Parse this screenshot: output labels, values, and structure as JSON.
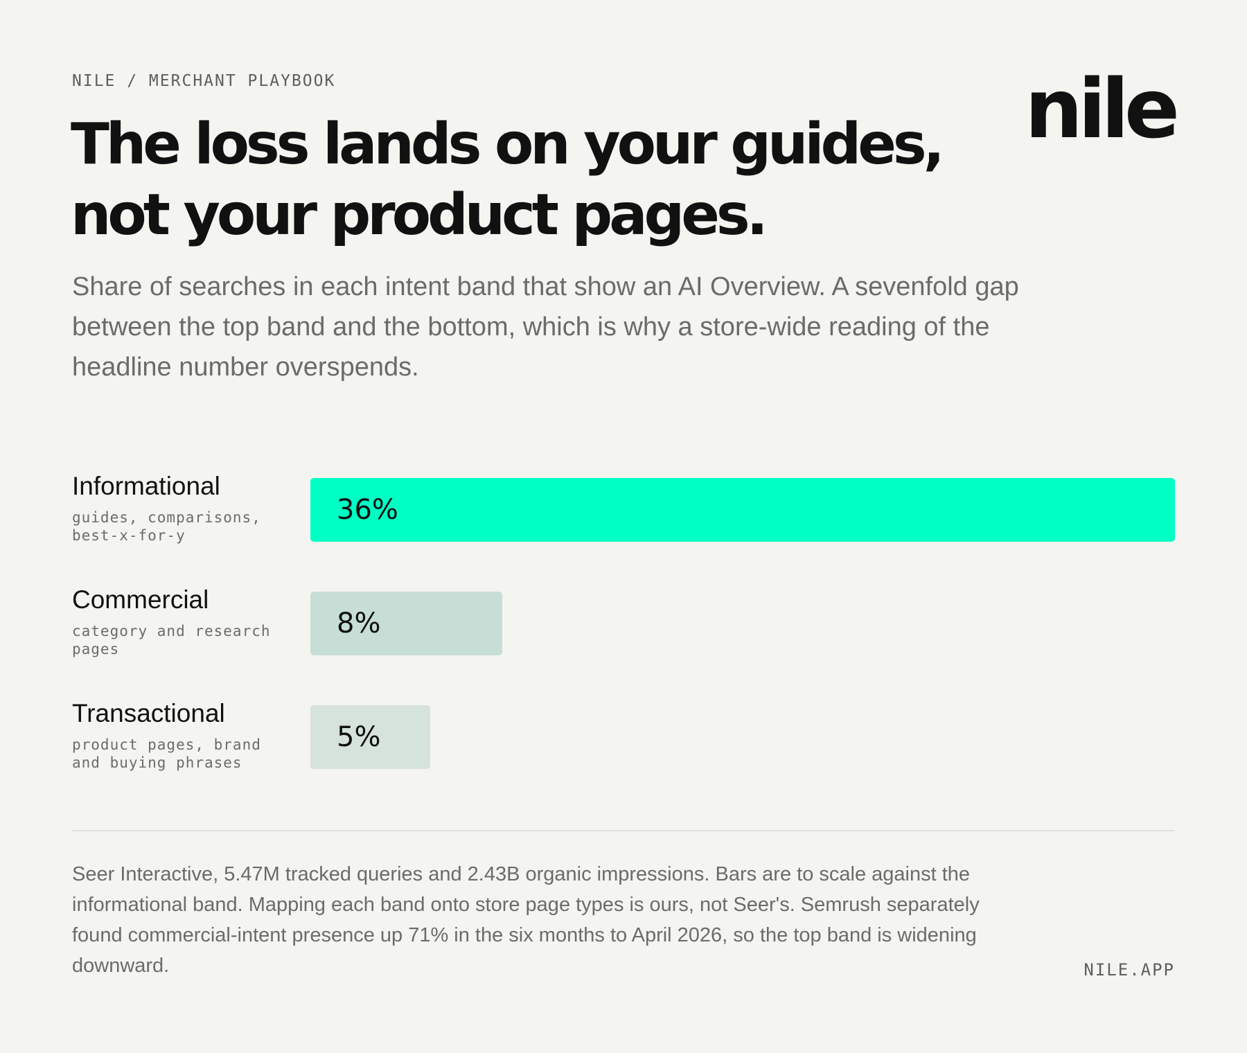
{
  "header": {
    "eyebrow": "NILE / MERCHANT PLAYBOOK",
    "logo_text": "nile",
    "headline_line1": "The loss lands on your guides,",
    "headline_line2": "not your product pages.",
    "subtitle": "Share of searches in each intent band that show an AI Overview. A sevenfold gap between the top band and the bottom, which is why a store-wide reading of the headline number overspends."
  },
  "chart_data": {
    "type": "bar",
    "orientation": "horizontal",
    "title": "",
    "xlabel": "",
    "ylabel": "",
    "xlim": [
      0,
      36
    ],
    "grid": false,
    "categories": [
      "Informational",
      "Commercial",
      "Transactional"
    ],
    "category_descriptions": [
      "guides, comparisons, best-x-for-y",
      "category and research pages",
      "product pages, brand and buying phrases"
    ],
    "values": [
      36,
      8,
      5
    ],
    "value_labels": [
      "36%",
      "8%",
      "5%"
    ],
    "colors": [
      "#00ffc4",
      "#c6ded6",
      "#d6e3dc"
    ]
  },
  "footer": {
    "note": "Seer Interactive, 5.47M tracked queries and 2.43B organic impressions. Bars are to scale against the informational band. Mapping each band onto store page types is ours, not Seer's. Semrush separately found commercial-intent presence up 71% in the six months to April 2026, so the top band is widening downward.",
    "site": "NILE.APP"
  }
}
